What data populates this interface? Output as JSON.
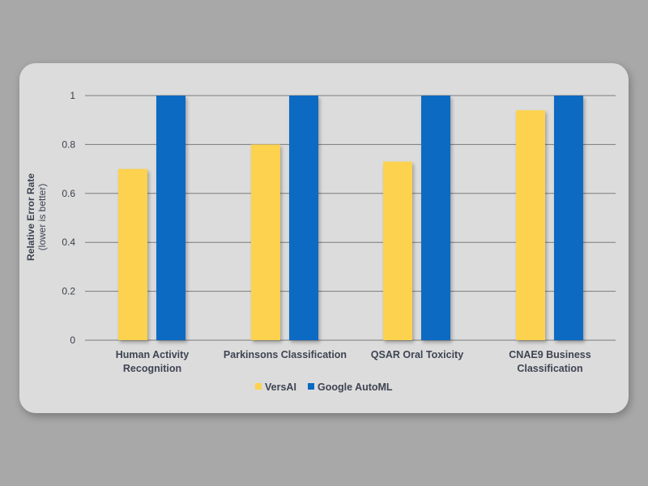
{
  "chart_data": {
    "type": "bar",
    "categories": [
      [
        "Human Activity",
        "Recognition"
      ],
      [
        "Parkinsons Classification"
      ],
      [
        "QSAR Oral Toxicity"
      ],
      [
        "CNAE9 Business",
        "Classification"
      ]
    ],
    "series": [
      {
        "name": "VersAI",
        "color": "#fcd24f",
        "values": [
          0.7,
          0.8,
          0.73,
          0.94
        ]
      },
      {
        "name": "Google AutoML",
        "color": "#0a6ac2",
        "values": [
          1.0,
          1.0,
          1.0,
          1.0
        ]
      }
    ],
    "ylabel": "Relative Error Rate",
    "ylabel_sub": "(lower is better)",
    "ylim": [
      0,
      1
    ],
    "yticks": [
      {
        "value": 0,
        "label": "0"
      },
      {
        "value": 0.2,
        "label": "0.2"
      },
      {
        "value": 0.4,
        "label": "0.4"
      },
      {
        "value": 0.6,
        "label": "0.6"
      },
      {
        "value": 0.8,
        "label": "0.8"
      },
      {
        "value": 1,
        "label": "1"
      }
    ],
    "grid": true,
    "legend_position": "bottom"
  }
}
